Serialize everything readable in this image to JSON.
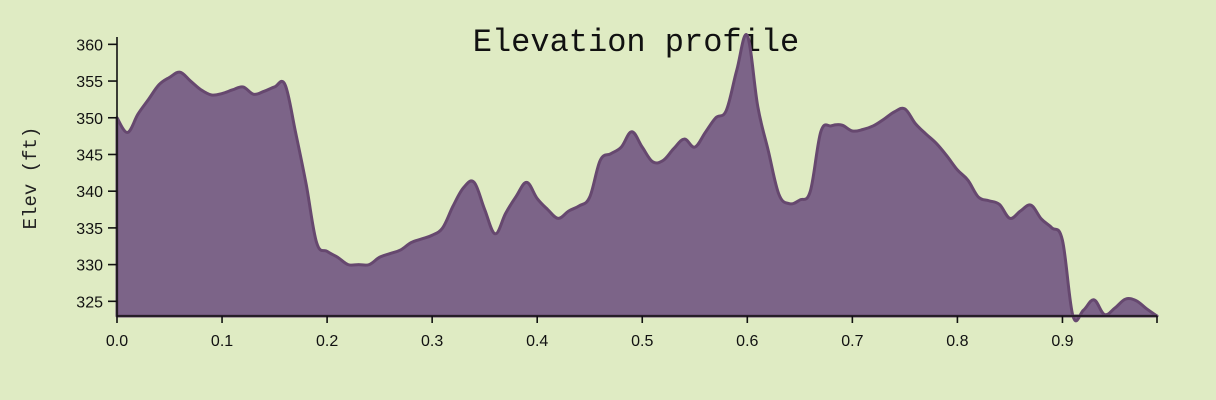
{
  "chart_data": {
    "type": "area",
    "title": "Elevation profile",
    "xlabel": "",
    "ylabel": "Elev (ft)",
    "xlim": [
      0,
      0.99
    ],
    "ylim": [
      323,
      361
    ],
    "x_ticks": [
      "0.0",
      "0.1",
      "0.2",
      "0.3",
      "0.4",
      "0.5",
      "0.6",
      "0.7",
      "0.8",
      "0.9"
    ],
    "y_ticks": [
      "325",
      "330",
      "335",
      "340",
      "345",
      "350",
      "355",
      "360"
    ],
    "grid": false,
    "legend": "none",
    "colors": {
      "background": "#dfebc3",
      "fill": "#7c6488",
      "line": "#66486f"
    },
    "x": [
      0,
      0.01,
      0.02,
      0.03,
      0.04,
      0.05,
      0.06,
      0.07,
      0.08,
      0.09,
      0.1,
      0.11,
      0.12,
      0.13,
      0.14,
      0.15,
      0.16,
      0.17,
      0.18,
      0.19,
      0.2,
      0.21,
      0.22,
      0.23,
      0.24,
      0.25,
      0.26,
      0.27,
      0.28,
      0.29,
      0.3,
      0.31,
      0.32,
      0.33,
      0.34,
      0.35,
      0.36,
      0.37,
      0.38,
      0.39,
      0.4,
      0.41,
      0.42,
      0.43,
      0.44,
      0.45,
      0.46,
      0.47,
      0.48,
      0.49,
      0.5,
      0.51,
      0.52,
      0.53,
      0.54,
      0.55,
      0.56,
      0.57,
      0.58,
      0.59,
      0.6,
      0.61,
      0.62,
      0.63,
      0.64,
      0.65,
      0.66,
      0.67,
      0.68,
      0.69,
      0.7,
      0.71,
      0.72,
      0.73,
      0.74,
      0.75,
      0.76,
      0.77,
      0.78,
      0.79,
      0.8,
      0.81,
      0.82,
      0.83,
      0.84,
      0.85,
      0.86,
      0.87,
      0.88,
      0.89,
      0.9,
      0.91,
      0.92,
      0.93,
      0.94,
      0.95,
      0.96,
      0.97,
      0.98,
      0.99
    ],
    "y": [
      350,
      348,
      350.5,
      352.5,
      354.5,
      355.5,
      356.2,
      355,
      353.8,
      353.1,
      353.3,
      353.8,
      354.2,
      353.2,
      353.6,
      354.2,
      354.5,
      348,
      341,
      333,
      331.8,
      331,
      330,
      330,
      330,
      331,
      331.5,
      332,
      333,
      333.5,
      334,
      335,
      338,
      340.5,
      341.2,
      337.5,
      334.2,
      337,
      339.3,
      341.2,
      339,
      337.5,
      336.3,
      337.3,
      338,
      339.2,
      344.2,
      345.1,
      346,
      348.1,
      346,
      344,
      344.2,
      345.8,
      347.1,
      346,
      348,
      350,
      351,
      356.5,
      361.2,
      351.5,
      345.5,
      339.6,
      338.3,
      338.8,
      340,
      348.1,
      348.9,
      349,
      348.2,
      348.4,
      348.9,
      349.8,
      350.8,
      351.2,
      349.2,
      347.8,
      346.5,
      344.8,
      342.9,
      341.5,
      339.2,
      338.7,
      338.2,
      336.3,
      337.3,
      338.1,
      336.2,
      335,
      333.3,
      323,
      323.8,
      325.2,
      323.2,
      324.1,
      325.3,
      325.1,
      324,
      323
    ]
  }
}
